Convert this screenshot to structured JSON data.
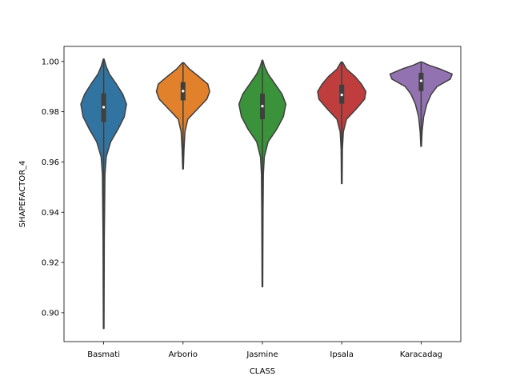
{
  "chart_data": {
    "type": "violin",
    "xlabel": "CLASS",
    "ylabel": "SHAPEFACTOR_4",
    "ylim": [
      0.8885,
      1.006
    ],
    "y_ticks": [
      "0.90",
      "0.92",
      "0.94",
      "0.96",
      "0.98",
      "1.00"
    ],
    "y_tick_values": [
      0.9,
      0.92,
      0.94,
      0.96,
      0.98,
      1.0
    ],
    "grid": false,
    "categories": [
      "Basmati",
      "Arborio",
      "Jasmine",
      "Ipsala",
      "Karacadag"
    ],
    "colors": [
      "#3274a1",
      "#e1812c",
      "#3a923a",
      "#c03d3e",
      "#9372b2"
    ],
    "violins": [
      {
        "name": "Basmati",
        "min": 0.8937,
        "q1": 0.9759,
        "median": 0.9818,
        "q3": 0.9873,
        "max": 1.001,
        "profile": [
          [
            0.8937,
            0.01
          ],
          [
            0.93,
            0.02
          ],
          [
            0.955,
            0.04
          ],
          [
            0.962,
            0.08
          ],
          [
            0.968,
            0.22
          ],
          [
            0.973,
            0.45
          ],
          [
            0.978,
            0.65
          ],
          [
            0.983,
            0.72
          ],
          [
            0.987,
            0.6
          ],
          [
            0.991,
            0.4
          ],
          [
            0.995,
            0.18
          ],
          [
            0.998,
            0.08
          ],
          [
            1.001,
            0.01
          ]
        ]
      },
      {
        "name": "Arborio",
        "min": 0.9572,
        "q1": 0.9845,
        "median": 0.9882,
        "q3": 0.9918,
        "max": 0.9995,
        "profile": [
          [
            0.9572,
            0.01
          ],
          [
            0.965,
            0.03
          ],
          [
            0.972,
            0.06
          ],
          [
            0.977,
            0.15
          ],
          [
            0.981,
            0.45
          ],
          [
            0.985,
            0.75
          ],
          [
            0.988,
            0.84
          ],
          [
            0.991,
            0.78
          ],
          [
            0.994,
            0.5
          ],
          [
            0.997,
            0.2
          ],
          [
            0.9995,
            0.02
          ]
        ]
      },
      {
        "name": "Jasmine",
        "min": 0.9103,
        "q1": 0.977,
        "median": 0.9822,
        "q3": 0.9872,
        "max": 1.0005,
        "profile": [
          [
            0.9103,
            0.01
          ],
          [
            0.94,
            0.02
          ],
          [
            0.955,
            0.03
          ],
          [
            0.962,
            0.06
          ],
          [
            0.968,
            0.18
          ],
          [
            0.973,
            0.45
          ],
          [
            0.978,
            0.66
          ],
          [
            0.983,
            0.74
          ],
          [
            0.987,
            0.62
          ],
          [
            0.991,
            0.4
          ],
          [
            0.995,
            0.18
          ],
          [
            0.998,
            0.07
          ],
          [
            1.0005,
            0.01
          ]
        ]
      },
      {
        "name": "Ipsala",
        "min": 0.9514,
        "q1": 0.9832,
        "median": 0.9867,
        "q3": 0.9908,
        "max": 0.9998,
        "profile": [
          [
            0.9514,
            0.01
          ],
          [
            0.965,
            0.02
          ],
          [
            0.972,
            0.05
          ],
          [
            0.977,
            0.15
          ],
          [
            0.981,
            0.45
          ],
          [
            0.985,
            0.72
          ],
          [
            0.988,
            0.76
          ],
          [
            0.991,
            0.62
          ],
          [
            0.994,
            0.42
          ],
          [
            0.997,
            0.15
          ],
          [
            0.9998,
            0.02
          ]
        ]
      },
      {
        "name": "Karacadag",
        "min": 0.9662,
        "q1": 0.9882,
        "median": 0.9923,
        "q3": 0.9955,
        "max": 0.9998,
        "profile": [
          [
            0.9662,
            0.01
          ],
          [
            0.972,
            0.03
          ],
          [
            0.978,
            0.08
          ],
          [
            0.983,
            0.18
          ],
          [
            0.987,
            0.32
          ],
          [
            0.99,
            0.5
          ],
          [
            0.993,
            0.92
          ],
          [
            0.995,
            0.98
          ],
          [
            0.997,
            0.6
          ],
          [
            0.9985,
            0.25
          ],
          [
            0.9998,
            0.02
          ]
        ]
      }
    ]
  }
}
